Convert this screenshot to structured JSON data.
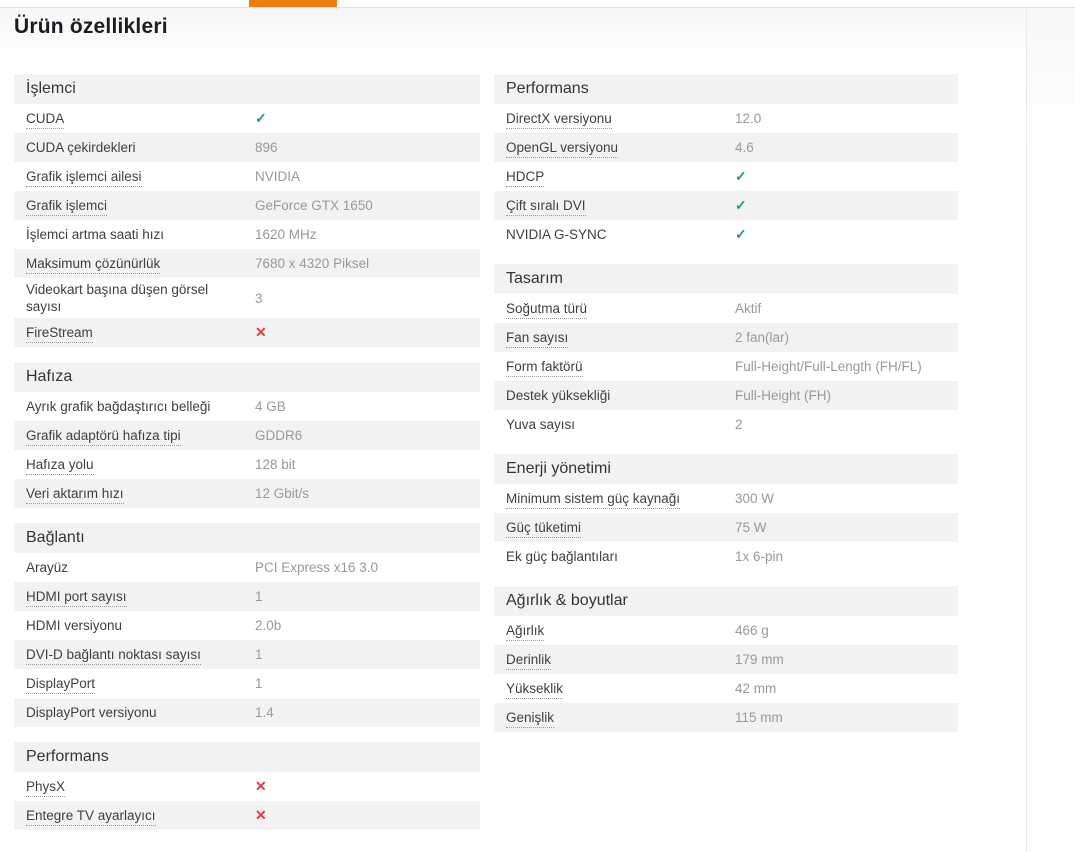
{
  "page": {
    "title": "Ürün özellikleri",
    "accent_color": "#ee7d11",
    "check_color": "#23a05c",
    "cross_color": "#e43a43",
    "stripe_color": "#f2f2f2"
  },
  "columns": {
    "left": [
      {
        "title": "İşlemci",
        "rows": [
          {
            "label": "CUDA",
            "dotted": true,
            "mark": "check"
          },
          {
            "label": "CUDA çekirdekleri",
            "dotted": false,
            "value": "896"
          },
          {
            "label": "Grafik işlemci ailesi",
            "dotted": true,
            "value": "NVIDIA"
          },
          {
            "label": "Grafik işlemci",
            "dotted": true,
            "value": "GeForce GTX 1650"
          },
          {
            "label": "İşlemci artma saati hızı",
            "dotted": false,
            "value": "1620 MHz"
          },
          {
            "label": "Maksimum çözünürlük",
            "dotted": true,
            "value": "7680 x 4320 Piksel"
          },
          {
            "label": "Videokart başına düşen görsel sayısı",
            "dotted": false,
            "value": "3"
          },
          {
            "label": "FireStream",
            "dotted": true,
            "mark": "cross"
          }
        ]
      },
      {
        "title": "Hafıza",
        "rows": [
          {
            "label": "Ayrık grafik bağdaştırıcı belleği",
            "dotted": false,
            "value": "4 GB"
          },
          {
            "label": "Grafik adaptörü hafıza tipi",
            "dotted": true,
            "value": "GDDR6"
          },
          {
            "label": "Hafıza yolu",
            "dotted": true,
            "value": "128 bit"
          },
          {
            "label": "Veri aktarım hızı",
            "dotted": true,
            "value": "12 Gbit/s"
          }
        ]
      },
      {
        "title": "Bağlantı",
        "rows": [
          {
            "label": "Arayüz",
            "dotted": false,
            "value": "PCI Express x16 3.0"
          },
          {
            "label": "HDMI port sayısı",
            "dotted": true,
            "value": "1"
          },
          {
            "label": "HDMI versiyonu",
            "dotted": false,
            "value": "2.0b"
          },
          {
            "label": "DVI-D bağlantı noktası sayısı",
            "dotted": true,
            "value": "1"
          },
          {
            "label": "DisplayPort",
            "dotted": true,
            "value": "1"
          },
          {
            "label": "DisplayPort versiyonu",
            "dotted": false,
            "value": "1.4"
          }
        ]
      },
      {
        "title": "Performans",
        "rows": [
          {
            "label": "PhysX",
            "dotted": true,
            "mark": "cross"
          },
          {
            "label": "Entegre TV ayarlayıcı",
            "dotted": true,
            "mark": "cross"
          }
        ]
      }
    ],
    "right": [
      {
        "title": "Performans",
        "rows": [
          {
            "label": "DirectX versiyonu",
            "dotted": true,
            "value": "12.0"
          },
          {
            "label": "OpenGL versiyonu",
            "dotted": true,
            "value": "4.6"
          },
          {
            "label": "HDCP",
            "dotted": true,
            "mark": "check"
          },
          {
            "label": "Çift sıralı DVI",
            "dotted": true,
            "mark": "check"
          },
          {
            "label": "NVIDIA G-SYNC",
            "dotted": false,
            "mark": "check"
          }
        ]
      },
      {
        "title": "Tasarım",
        "rows": [
          {
            "label": "Soğutma türü",
            "dotted": true,
            "value": "Aktif"
          },
          {
            "label": "Fan sayısı",
            "dotted": true,
            "value": "2 fan(lar)"
          },
          {
            "label": "Form faktörü",
            "dotted": true,
            "value": "Full-Height/Full-Length (FH/FL)"
          },
          {
            "label": "Destek yüksekliği",
            "dotted": false,
            "value": "Full-Height (FH)"
          },
          {
            "label": "Yuva sayısı",
            "dotted": false,
            "value": "2"
          }
        ]
      },
      {
        "title": "Enerji yönetimi",
        "rows": [
          {
            "label": "Minimum sistem güç kaynağı",
            "dotted": true,
            "value": "300 W"
          },
          {
            "label": "Güç tüketimi",
            "dotted": true,
            "value": "75 W"
          },
          {
            "label": "Ek güç bağlantıları",
            "dotted": false,
            "value": "1x 6-pin"
          }
        ]
      },
      {
        "title": "Ağırlık & boyutlar",
        "rows": [
          {
            "label": "Ağırlık",
            "dotted": true,
            "value": "466 g"
          },
          {
            "label": "Derinlik",
            "dotted": true,
            "value": "179 mm"
          },
          {
            "label": "Yükseklik",
            "dotted": true,
            "value": "42 mm"
          },
          {
            "label": "Genişlik",
            "dotted": true,
            "value": "115 mm"
          }
        ]
      }
    ]
  }
}
